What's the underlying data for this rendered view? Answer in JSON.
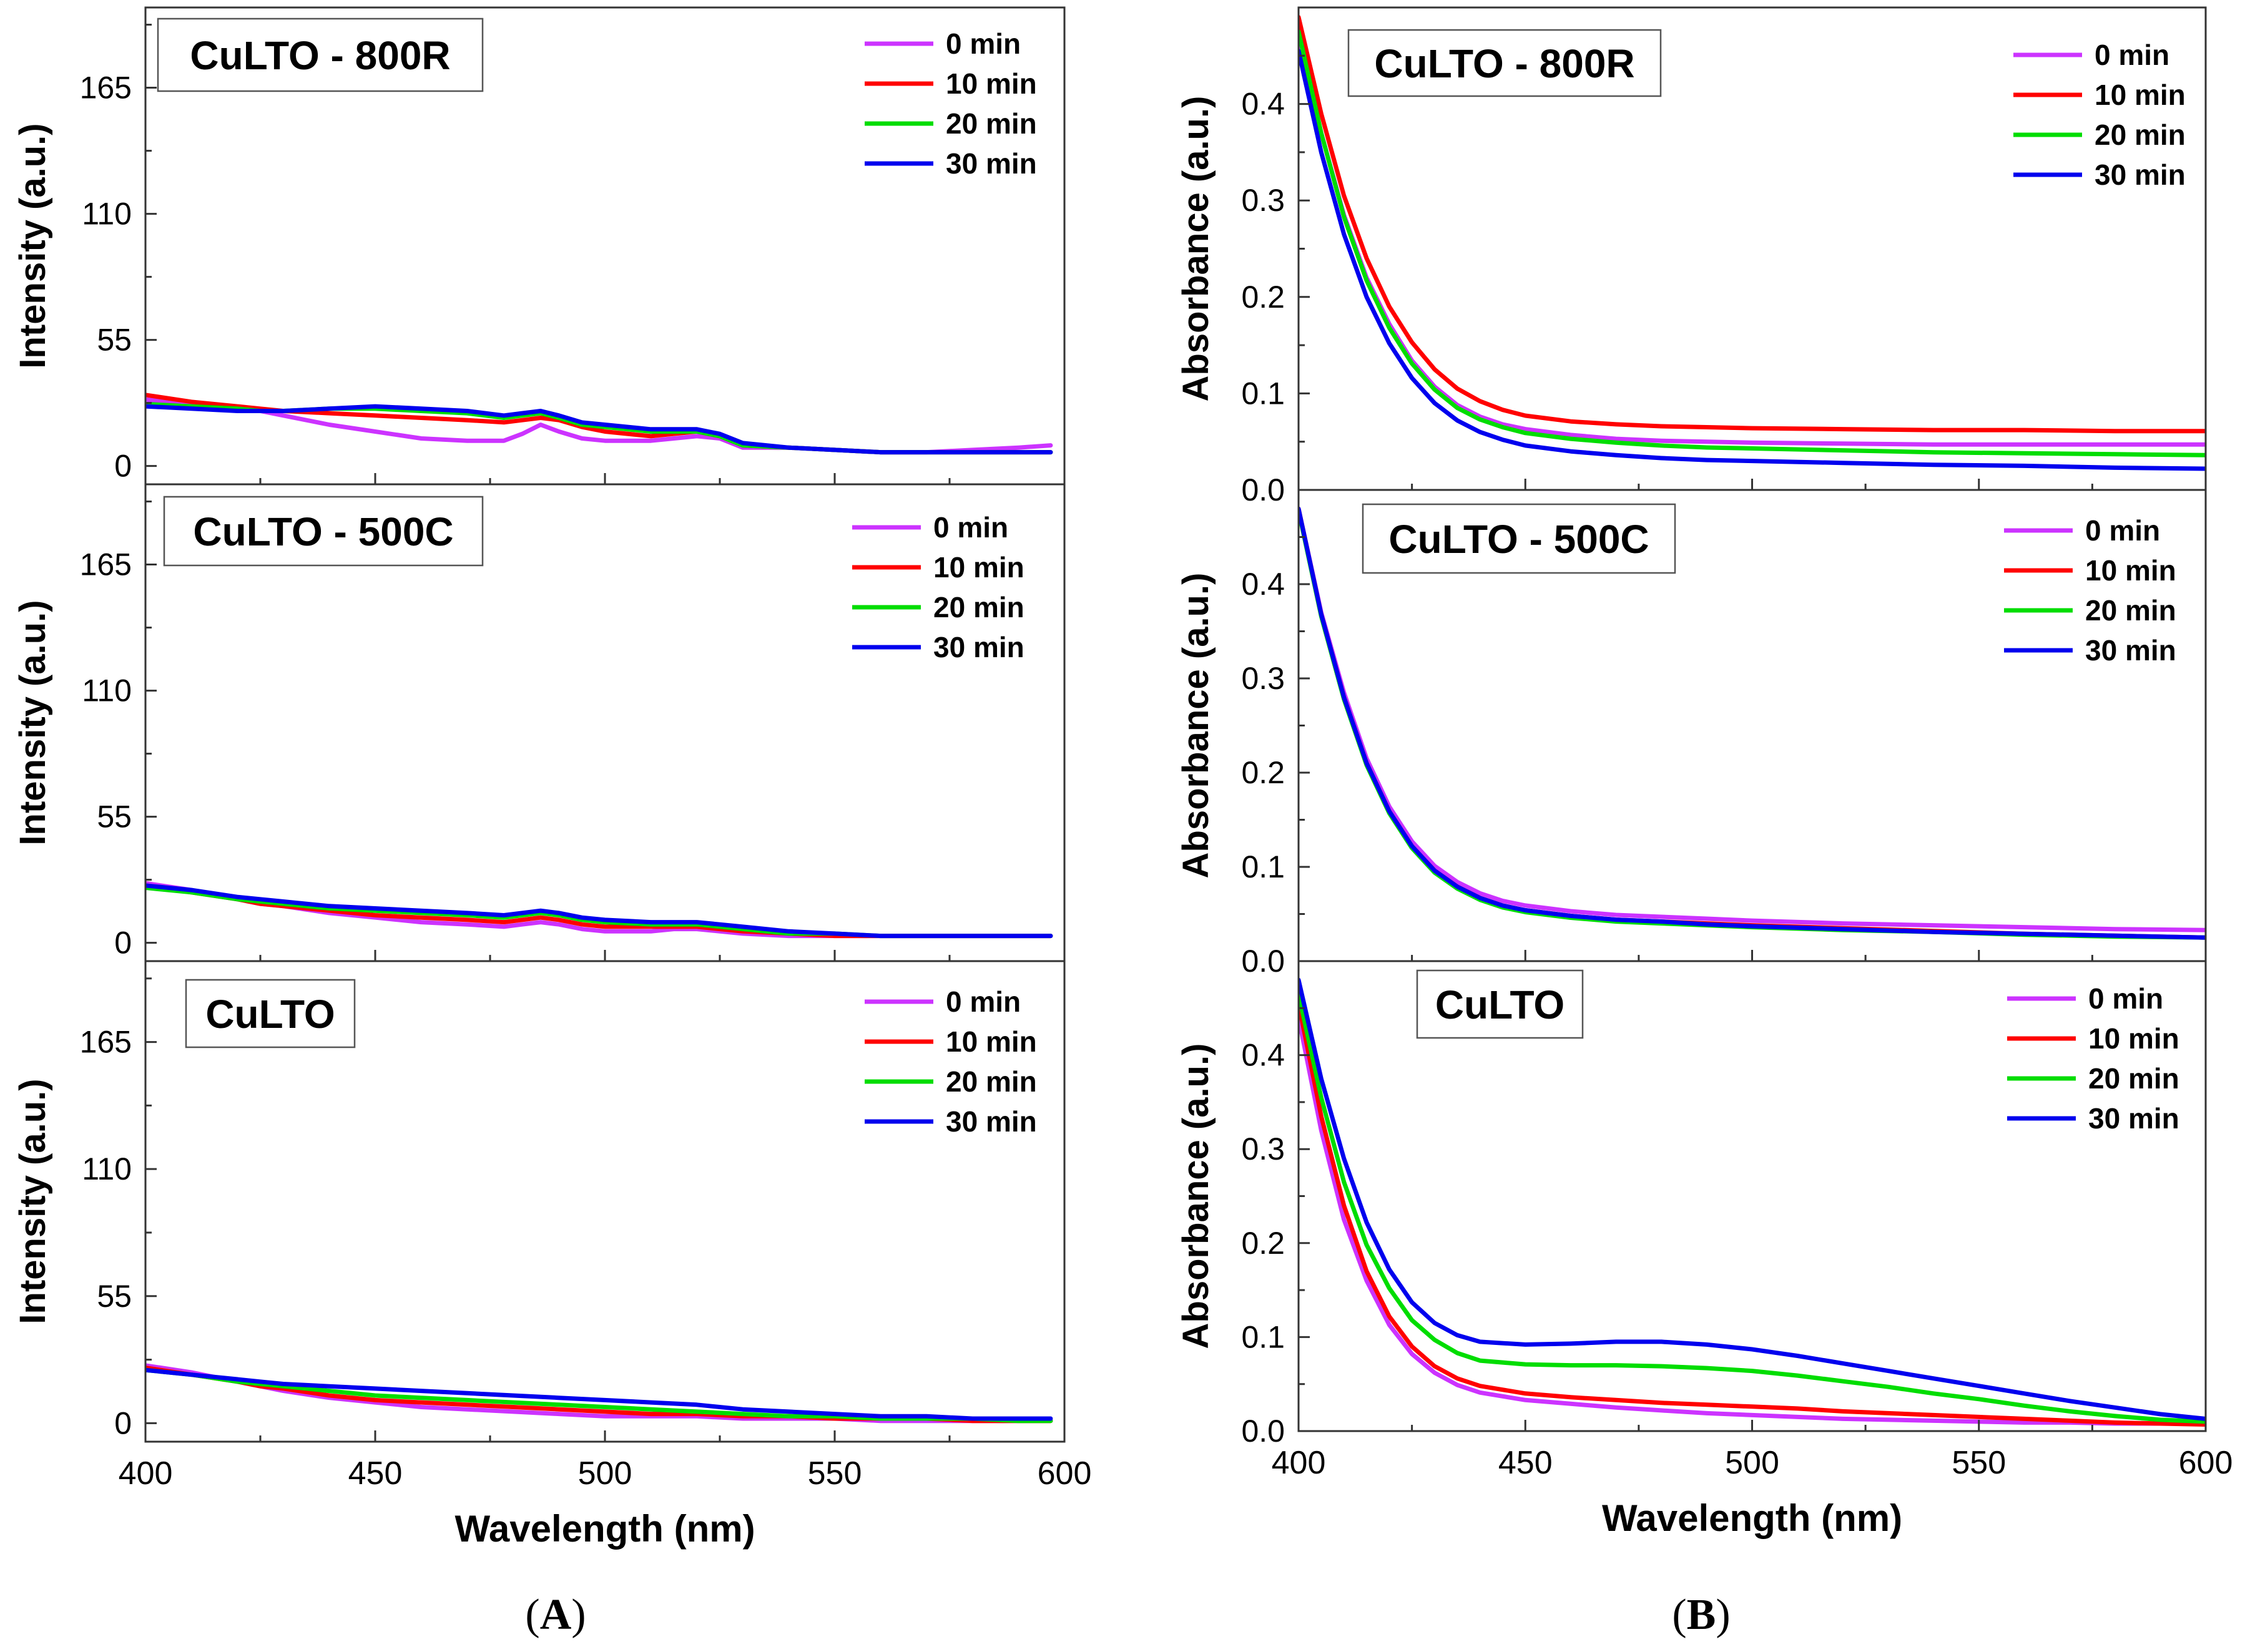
{
  "colors": {
    "0 min": "#cc33ff",
    "10 min": "#ff0000",
    "20 min": "#00dd00",
    "30 min": "#0000ee"
  },
  "panel_labels": {
    "A": "A",
    "B": "B"
  },
  "chart_data": [
    {
      "id": "A-top",
      "type": "line",
      "title": "CuLTO - 800R",
      "xlabel": "",
      "ylabel": "Intensity (a.u.)",
      "xlim": [
        400,
        600
      ],
      "ylim": [
        -8,
        200
      ],
      "yticks": [
        0,
        55,
        110,
        165
      ],
      "ytick_labels": [
        "0",
        "55",
        "110",
        "165"
      ],
      "xticks": [],
      "xtick_labels": [],
      "legend": "top-right",
      "x": [
        400,
        410,
        420,
        425,
        430,
        440,
        450,
        460,
        470,
        478,
        482,
        486,
        490,
        495,
        500,
        510,
        515,
        520,
        525,
        530,
        540,
        550,
        560,
        570,
        580,
        590,
        597
      ],
      "series": [
        {
          "name": "0 min",
          "values": [
            29,
            27,
            25,
            24,
            22,
            18,
            15,
            12,
            11,
            11,
            14,
            18,
            15,
            12,
            11,
            11,
            12,
            13,
            12,
            8,
            8,
            7,
            6,
            6,
            7,
            8,
            9
          ]
        },
        {
          "name": "10 min",
          "values": [
            31,
            28,
            26,
            25,
            24,
            23,
            22,
            21,
            20,
            19,
            20,
            21,
            20,
            17,
            15,
            13,
            14,
            15,
            13,
            9,
            8,
            7,
            6,
            6,
            6,
            6,
            6
          ]
        },
        {
          "name": "20 min",
          "values": [
            27,
            26,
            25,
            24,
            24,
            25,
            25,
            24,
            23,
            21,
            22,
            23,
            21,
            18,
            17,
            15,
            15,
            15,
            13,
            9,
            8,
            7,
            6,
            6,
            6,
            6,
            6
          ]
        },
        {
          "name": "30 min",
          "values": [
            26,
            25,
            24,
            24,
            24,
            25,
            26,
            25,
            24,
            22,
            23,
            24,
            22,
            19,
            18,
            16,
            16,
            16,
            14,
            10,
            8,
            7,
            6,
            6,
            6,
            6,
            6
          ]
        }
      ]
    },
    {
      "id": "A-mid",
      "type": "line",
      "title": "CuLTO - 500C",
      "xlabel": "",
      "ylabel": "Intensity (a.u.)",
      "xlim": [
        400,
        600
      ],
      "ylim": [
        -8,
        200
      ],
      "yticks": [
        0,
        55,
        110,
        165
      ],
      "ytick_labels": [
        "0",
        "55",
        "110",
        "165"
      ],
      "xticks": [],
      "xtick_labels": [],
      "legend": "top-right",
      "x": [
        400,
        410,
        420,
        425,
        430,
        440,
        450,
        460,
        470,
        478,
        482,
        486,
        490,
        495,
        500,
        510,
        515,
        520,
        525,
        530,
        540,
        550,
        560,
        570,
        580,
        590,
        597
      ],
      "series": [
        {
          "name": "0 min",
          "values": [
            26,
            23,
            19,
            17,
            16,
            13,
            11,
            9,
            8,
            7,
            8,
            9,
            8,
            6,
            5,
            5,
            6,
            6,
            5,
            4,
            3,
            3,
            3,
            3,
            3,
            3,
            3
          ]
        },
        {
          "name": "10 min",
          "values": [
            25,
            22,
            19,
            17,
            16,
            14,
            12,
            11,
            10,
            9,
            10,
            11,
            10,
            8,
            7,
            7,
            7,
            7,
            6,
            5,
            4,
            3,
            3,
            3,
            3,
            3,
            3
          ]
        },
        {
          "name": "20 min",
          "values": [
            24,
            22,
            19,
            18,
            17,
            15,
            14,
            13,
            12,
            11,
            12,
            13,
            12,
            10,
            9,
            8,
            8,
            8,
            7,
            6,
            4,
            4,
            3,
            3,
            3,
            3,
            3
          ]
        },
        {
          "name": "30 min",
          "values": [
            25,
            23,
            20,
            19,
            18,
            16,
            15,
            14,
            13,
            12,
            13,
            14,
            13,
            11,
            10,
            9,
            9,
            9,
            8,
            7,
            5,
            4,
            3,
            3,
            3,
            3,
            3
          ]
        }
      ]
    },
    {
      "id": "A-bot",
      "type": "line",
      "title": "CuLTO",
      "xlabel": "Wavelength (nm)",
      "ylabel": "Intensity (a.u.)",
      "xlim": [
        400,
        600
      ],
      "ylim": [
        -8,
        200
      ],
      "yticks": [
        0,
        55,
        110,
        165
      ],
      "ytick_labels": [
        "0",
        "55",
        "110",
        "165"
      ],
      "xticks": [
        400,
        450,
        500,
        550,
        600
      ],
      "xtick_labels": [
        "400",
        "450",
        "500",
        "550",
        "600"
      ],
      "legend": "top-right",
      "x": [
        400,
        410,
        420,
        425,
        430,
        440,
        450,
        460,
        470,
        480,
        490,
        500,
        510,
        520,
        530,
        540,
        550,
        560,
        570,
        580,
        590,
        597
      ],
      "series": [
        {
          "name": "0 min",
          "values": [
            25,
            22,
            18,
            16,
            14,
            11,
            9,
            7,
            6,
            5,
            4,
            3,
            3,
            3,
            2,
            2,
            2,
            1,
            1,
            1,
            1,
            1
          ]
        },
        {
          "name": "10 min",
          "values": [
            24,
            21,
            18,
            16,
            15,
            12,
            10,
            9,
            8,
            7,
            6,
            5,
            4,
            4,
            3,
            3,
            2,
            2,
            2,
            1,
            1,
            1
          ]
        },
        {
          "name": "20 min",
          "values": [
            23,
            21,
            18,
            17,
            16,
            14,
            12,
            11,
            10,
            9,
            8,
            7,
            6,
            5,
            4,
            3,
            3,
            2,
            2,
            2,
            1,
            1
          ]
        },
        {
          "name": "30 min",
          "values": [
            23,
            21,
            19,
            18,
            17,
            16,
            15,
            14,
            13,
            12,
            11,
            10,
            9,
            8,
            6,
            5,
            4,
            3,
            3,
            2,
            2,
            2
          ]
        }
      ]
    },
    {
      "id": "B-top",
      "type": "line",
      "title": "CuLTO - 800R",
      "xlabel": "",
      "ylabel": "Absorbance (a.u.)",
      "xlim": [
        400,
        600
      ],
      "ylim": [
        0,
        0.5
      ],
      "yticks": [
        0.0,
        0.1,
        0.2,
        0.3,
        0.4
      ],
      "ytick_labels": [
        "0.0",
        "0.1",
        "0.2",
        "0.3",
        "0.4"
      ],
      "xticks": [],
      "xtick_labels": [],
      "legend": "top-right",
      "x": [
        400,
        405,
        410,
        415,
        420,
        425,
        430,
        435,
        440,
        445,
        450,
        460,
        470,
        480,
        490,
        500,
        520,
        540,
        560,
        580,
        600
      ],
      "series": [
        {
          "name": "0 min",
          "values": [
            0.47,
            0.37,
            0.285,
            0.22,
            0.172,
            0.134,
            0.107,
            0.088,
            0.076,
            0.068,
            0.063,
            0.057,
            0.053,
            0.051,
            0.05,
            0.049,
            0.048,
            0.047,
            0.047,
            0.047,
            0.047
          ]
        },
        {
          "name": "10 min",
          "values": [
            0.49,
            0.39,
            0.305,
            0.24,
            0.19,
            0.153,
            0.125,
            0.105,
            0.092,
            0.083,
            0.077,
            0.071,
            0.068,
            0.066,
            0.065,
            0.064,
            0.063,
            0.062,
            0.062,
            0.061,
            0.061
          ]
        },
        {
          "name": "20 min",
          "values": [
            0.475,
            0.37,
            0.283,
            0.217,
            0.168,
            0.131,
            0.104,
            0.085,
            0.073,
            0.065,
            0.059,
            0.053,
            0.049,
            0.046,
            0.044,
            0.043,
            0.041,
            0.039,
            0.038,
            0.037,
            0.036
          ]
        },
        {
          "name": "30 min",
          "values": [
            0.455,
            0.35,
            0.265,
            0.2,
            0.152,
            0.116,
            0.09,
            0.072,
            0.06,
            0.052,
            0.046,
            0.04,
            0.036,
            0.033,
            0.031,
            0.03,
            0.028,
            0.026,
            0.025,
            0.023,
            0.022
          ]
        }
      ]
    },
    {
      "id": "B-mid",
      "type": "line",
      "title": "CuLTO - 500C",
      "xlabel": "",
      "ylabel": "Absorbance (a.u.)",
      "xlim": [
        400,
        600
      ],
      "ylim": [
        0,
        0.5
      ],
      "yticks": [
        0.0,
        0.1,
        0.2,
        0.3,
        0.4
      ],
      "ytick_labels": [
        "0.0",
        "0.1",
        "0.2",
        "0.3",
        "0.4"
      ],
      "xticks": [],
      "xtick_labels": [],
      "legend": "top-right",
      "x": [
        400,
        405,
        410,
        415,
        420,
        425,
        430,
        435,
        440,
        445,
        450,
        460,
        470,
        480,
        490,
        500,
        520,
        540,
        560,
        580,
        600
      ],
      "series": [
        {
          "name": "0 min",
          "values": [
            0.48,
            0.37,
            0.285,
            0.215,
            0.164,
            0.127,
            0.101,
            0.084,
            0.072,
            0.064,
            0.059,
            0.053,
            0.049,
            0.047,
            0.045,
            0.043,
            0.04,
            0.038,
            0.036,
            0.034,
            0.033
          ]
        },
        {
          "name": "10 min",
          "values": [
            0.48,
            0.368,
            0.28,
            0.21,
            0.159,
            0.122,
            0.096,
            0.079,
            0.067,
            0.059,
            0.054,
            0.048,
            0.044,
            0.042,
            0.04,
            0.038,
            0.035,
            0.032,
            0.029,
            0.027,
            0.025
          ]
        },
        {
          "name": "20 min",
          "values": [
            0.478,
            0.366,
            0.278,
            0.208,
            0.157,
            0.12,
            0.094,
            0.077,
            0.065,
            0.057,
            0.052,
            0.046,
            0.042,
            0.04,
            0.038,
            0.036,
            0.033,
            0.031,
            0.028,
            0.026,
            0.025
          ]
        },
        {
          "name": "30 min",
          "values": [
            0.48,
            0.368,
            0.28,
            0.21,
            0.159,
            0.122,
            0.096,
            0.079,
            0.067,
            0.059,
            0.054,
            0.048,
            0.044,
            0.042,
            0.039,
            0.037,
            0.034,
            0.031,
            0.029,
            0.027,
            0.025
          ]
        }
      ]
    },
    {
      "id": "B-bot",
      "type": "line",
      "title": "CuLTO",
      "xlabel": "Wavelength (nm)",
      "ylabel": "Absorbance (a.u.)",
      "xlim": [
        400,
        600
      ],
      "ylim": [
        0,
        0.5
      ],
      "yticks": [
        0.0,
        0.1,
        0.2,
        0.3,
        0.4
      ],
      "ytick_labels": [
        "0.0",
        "0.1",
        "0.2",
        "0.3",
        "0.4"
      ],
      "xticks": [
        400,
        450,
        500,
        550,
        600
      ],
      "xtick_labels": [
        "400",
        "450",
        "500",
        "550",
        "600"
      ],
      "legend": "top-right",
      "x": [
        400,
        405,
        410,
        415,
        420,
        425,
        430,
        435,
        440,
        450,
        460,
        470,
        480,
        490,
        500,
        510,
        520,
        530,
        540,
        550,
        560,
        570,
        580,
        590,
        600
      ],
      "series": [
        {
          "name": "0 min",
          "values": [
            0.44,
            0.32,
            0.225,
            0.16,
            0.113,
            0.082,
            0.062,
            0.049,
            0.041,
            0.033,
            0.029,
            0.025,
            0.022,
            0.019,
            0.017,
            0.015,
            0.013,
            0.012,
            0.011,
            0.01,
            0.009,
            0.009,
            0.008,
            0.008,
            0.008
          ]
        },
        {
          "name": "10 min",
          "values": [
            0.455,
            0.335,
            0.24,
            0.17,
            0.122,
            0.09,
            0.069,
            0.056,
            0.048,
            0.04,
            0.036,
            0.033,
            0.03,
            0.028,
            0.026,
            0.024,
            0.021,
            0.019,
            0.017,
            0.015,
            0.013,
            0.011,
            0.009,
            0.008,
            0.007
          ]
        },
        {
          "name": "20 min",
          "values": [
            0.465,
            0.355,
            0.265,
            0.198,
            0.152,
            0.118,
            0.097,
            0.083,
            0.075,
            0.071,
            0.07,
            0.07,
            0.069,
            0.067,
            0.064,
            0.059,
            0.053,
            0.047,
            0.04,
            0.034,
            0.027,
            0.021,
            0.016,
            0.012,
            0.01
          ]
        },
        {
          "name": "30 min",
          "values": [
            0.48,
            0.375,
            0.29,
            0.222,
            0.172,
            0.137,
            0.115,
            0.102,
            0.095,
            0.092,
            0.093,
            0.095,
            0.095,
            0.092,
            0.087,
            0.08,
            0.072,
            0.064,
            0.056,
            0.048,
            0.04,
            0.032,
            0.025,
            0.018,
            0.013
          ]
        }
      ]
    }
  ]
}
